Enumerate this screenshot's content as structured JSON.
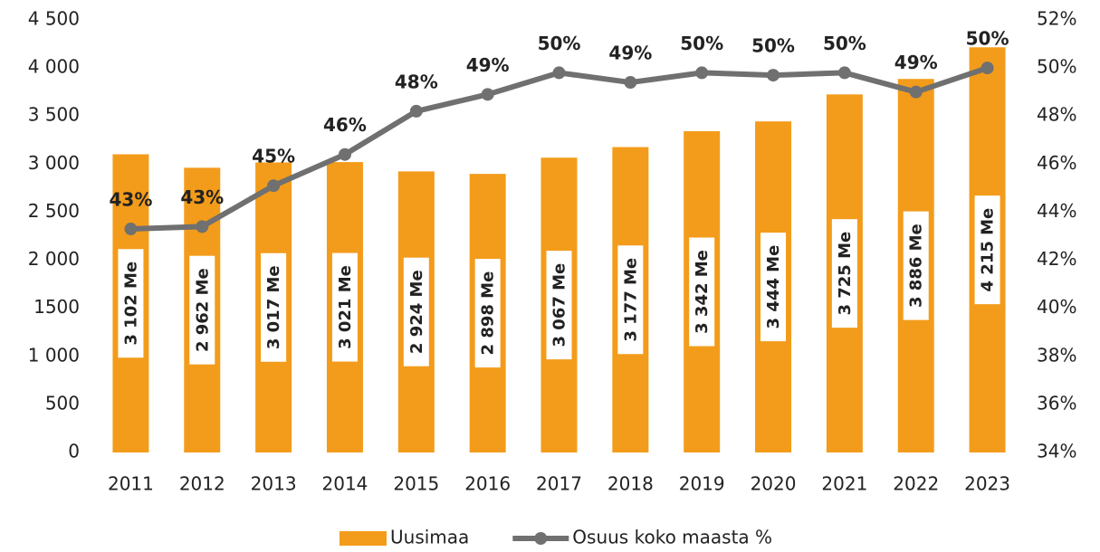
{
  "chart_data": {
    "type": "bar",
    "categories": [
      "2011",
      "2012",
      "2013",
      "2014",
      "2015",
      "2016",
      "2017",
      "2018",
      "2019",
      "2020",
      "2021",
      "2022",
      "2023"
    ],
    "series": [
      {
        "name": "Uusimaa",
        "type": "bar",
        "color": "#f39c1b",
        "values": [
          3102,
          2962,
          3017,
          3021,
          2924,
          2898,
          3067,
          3177,
          3342,
          3444,
          3725,
          3886,
          4215
        ],
        "value_labels": [
          "3 102 Me",
          "2 962 Me",
          "3 017 Me",
          "3 021 Me",
          "2 924 Me",
          "2 898 Me",
          "3 067 Me",
          "3 177 Me",
          "3 342 Me",
          "3 444 Me",
          "3 725 Me",
          "3 886 Me",
          "4 215 Me"
        ]
      },
      {
        "name": "Osuus koko maasta %",
        "type": "line",
        "axis": "y2",
        "color": "#707070",
        "values": [
          43.3,
          43.4,
          45.1,
          46.4,
          48.2,
          48.9,
          49.8,
          49.4,
          49.8,
          49.7,
          49.8,
          49.0,
          50.0
        ],
        "value_labels": [
          "43%",
          "43%",
          "45%",
          "46%",
          "48%",
          "49%",
          "50%",
          "49%",
          "50%",
          "50%",
          "50%",
          "49%",
          "50%"
        ]
      }
    ],
    "ylim": [
      0,
      4500
    ],
    "yticks": [
      0,
      500,
      {
        "value": 1000,
        "label": "1 000"
      },
      1500,
      {
        "value": 2000,
        "label": "2 000"
      },
      {
        "value": 2500,
        "label": "2 500"
      },
      {
        "value": 3000,
        "label": "3 000"
      },
      {
        "value": 3500,
        "label": "3 500"
      },
      {
        "value": 4000,
        "label": "4 000"
      },
      {
        "value": 4500,
        "label": "4 500"
      }
    ],
    "y2lim": [
      34,
      52
    ],
    "y2ticks": [
      {
        "value": 34,
        "label": "34%"
      },
      {
        "value": 36,
        "label": "36%"
      },
      {
        "value": 38,
        "label": "38%"
      },
      {
        "value": 40,
        "label": "40%"
      },
      {
        "value": 42,
        "label": "42%"
      },
      {
        "value": 44,
        "label": "44%"
      },
      {
        "value": 46,
        "label": "46%"
      },
      {
        "value": 48,
        "label": "48%"
      },
      {
        "value": 50,
        "label": "50%"
      },
      {
        "value": 52,
        "label": "52%"
      }
    ]
  }
}
